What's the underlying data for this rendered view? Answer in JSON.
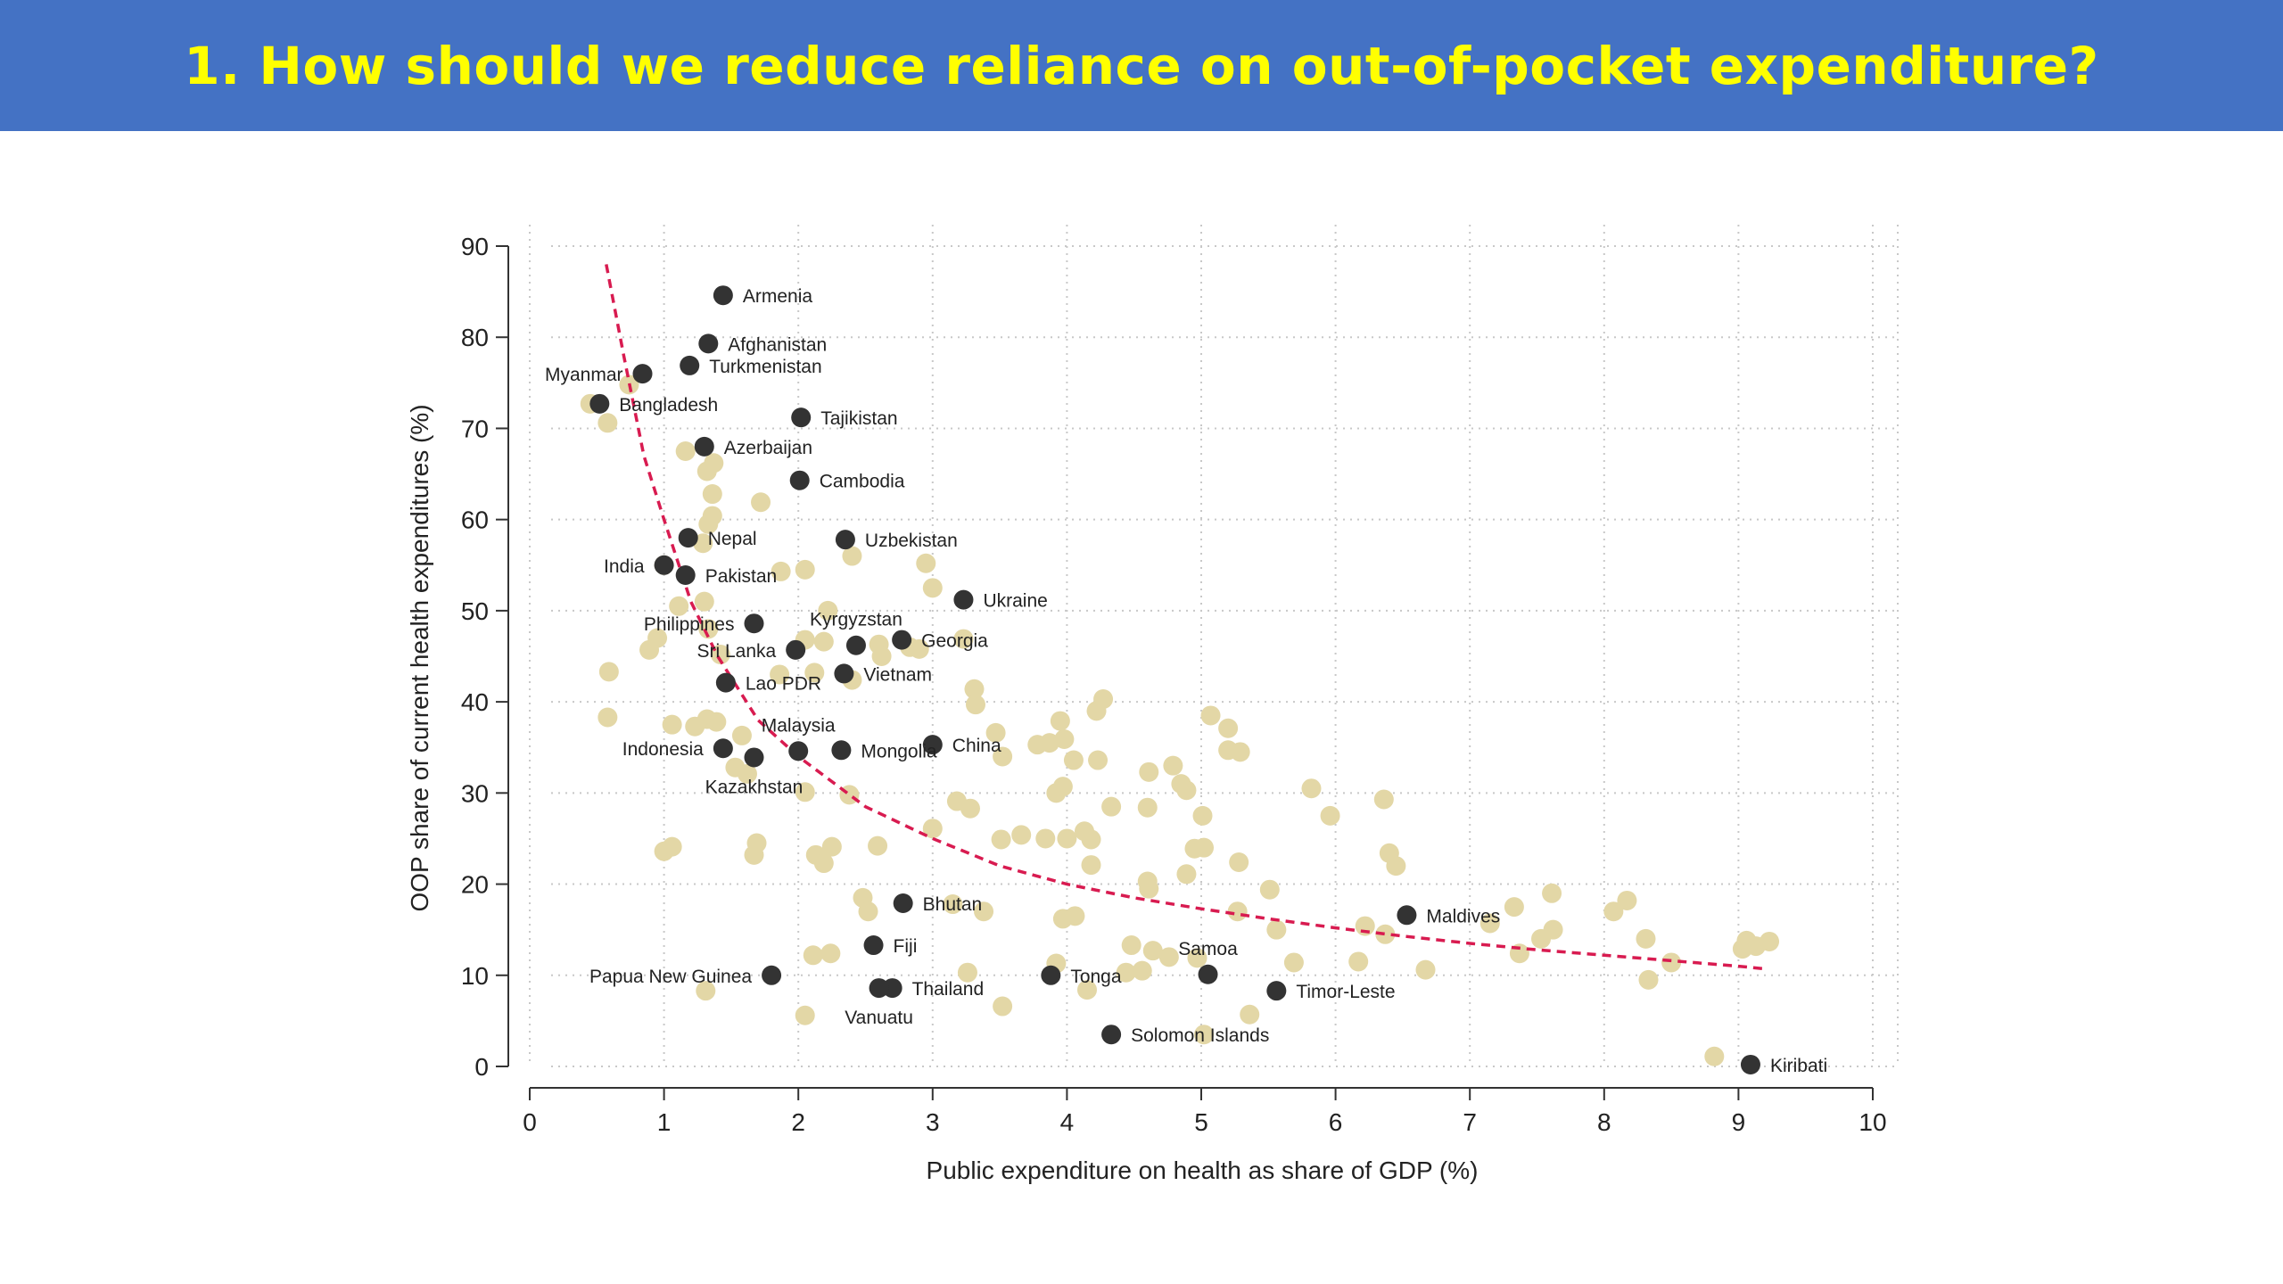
{
  "page": {
    "title": "1. How should we reduce reliance on out-of-pocket expenditure?"
  },
  "colors": {
    "title_bg": "#4472c4",
    "title_text": "#ffff00",
    "highlight_point": "#333333",
    "other_point": "#e3d7a6",
    "fit_curve": "#d81b50",
    "grid": "#c8c8c8"
  },
  "chart_data": {
    "type": "scatter",
    "title": "",
    "xlabel": "Public expenditure on health as share of GDP (%)",
    "ylabel": "OOP share of current health expenditures (%)",
    "xlim": [
      0,
      10
    ],
    "ylim": [
      0,
      90
    ],
    "xticks": [
      0,
      1,
      2,
      3,
      4,
      5,
      6,
      7,
      8,
      9,
      10
    ],
    "yticks": [
      0,
      10,
      20,
      30,
      40,
      50,
      60,
      70,
      80,
      90
    ],
    "grid": true,
    "fit_curve": {
      "style": "dashed",
      "x": [
        0.57,
        0.7,
        0.85,
        1.0,
        1.2,
        1.4,
        1.7,
        2.0,
        2.5,
        3.0,
        3.5,
        4.0,
        4.5,
        5.0,
        5.5,
        6.0,
        6.5,
        7.0,
        7.5,
        8.0,
        8.5,
        9.0,
        9.2
      ],
      "y": [
        88,
        78,
        67,
        60,
        51,
        45,
        38,
        34,
        28.5,
        25,
        22,
        20,
        18.5,
        17.3,
        16.2,
        15.2,
        14.3,
        13.5,
        12.8,
        12.2,
        11.6,
        11.0,
        10.7
      ]
    },
    "highlighted": [
      {
        "label": "Armenia",
        "x": 1.44,
        "y": 84.6,
        "label_pos": "right"
      },
      {
        "label": "Afghanistan",
        "x": 1.33,
        "y": 79.3,
        "label_pos": "right"
      },
      {
        "label": "Turkmenistan",
        "x": 1.19,
        "y": 76.9,
        "label_pos": "right"
      },
      {
        "label": "Myanmar",
        "x": 0.84,
        "y": 76.0,
        "label_pos": "left"
      },
      {
        "label": "Bangladesh",
        "x": 0.52,
        "y": 72.7,
        "label_pos": "right"
      },
      {
        "label": "Tajikistan",
        "x": 2.02,
        "y": 71.2,
        "label_pos": "right"
      },
      {
        "label": "Azerbaijan",
        "x": 1.3,
        "y": 68.0,
        "label_pos": "right"
      },
      {
        "label": "Cambodia",
        "x": 2.01,
        "y": 64.3,
        "label_pos": "right"
      },
      {
        "label": "Nepal",
        "x": 1.18,
        "y": 58.0,
        "label_pos": "right"
      },
      {
        "label": "Uzbekistan",
        "x": 2.35,
        "y": 57.8,
        "label_pos": "right"
      },
      {
        "label": "India",
        "x": 1.0,
        "y": 55.0,
        "label_pos": "left"
      },
      {
        "label": "Pakistan",
        "x": 1.16,
        "y": 53.9,
        "label_pos": "right"
      },
      {
        "label": "Ukraine",
        "x": 3.23,
        "y": 51.2,
        "label_pos": "right"
      },
      {
        "label": "Philippines",
        "x": 1.67,
        "y": 48.6,
        "label_pos": "left"
      },
      {
        "label": "Kyrgyzstan",
        "x": 2.43,
        "y": 46.2,
        "label_pos": "above"
      },
      {
        "label": "Georgia",
        "x": 2.77,
        "y": 46.8,
        "label_pos": "right"
      },
      {
        "label": "Sri Lanka",
        "x": 1.98,
        "y": 45.7,
        "label_pos": "left"
      },
      {
        "label": "Vietnam",
        "x": 2.34,
        "y": 43.1,
        "label_pos": "right"
      },
      {
        "label": "Lao PDR",
        "x": 1.46,
        "y": 42.1,
        "label_pos": "right"
      },
      {
        "label": "Malaysia",
        "x": 2.0,
        "y": 34.6,
        "label_pos": "above"
      },
      {
        "label": "Indonesia",
        "x": 1.44,
        "y": 34.9,
        "label_pos": "left"
      },
      {
        "label": "Mongolia",
        "x": 2.32,
        "y": 34.7,
        "label_pos": "right"
      },
      {
        "label": "China",
        "x": 3.0,
        "y": 35.3,
        "label_pos": "right"
      },
      {
        "label": "Kazakhstan",
        "x": 1.67,
        "y": 33.9,
        "label_pos": "below"
      },
      {
        "label": "Bhutan",
        "x": 2.78,
        "y": 17.9,
        "label_pos": "right"
      },
      {
        "label": "Maldives",
        "x": 6.53,
        "y": 16.6,
        "label_pos": "right"
      },
      {
        "label": "Fiji",
        "x": 2.56,
        "y": 13.3,
        "label_pos": "right"
      },
      {
        "label": "Samoa",
        "x": 5.05,
        "y": 10.1,
        "label_pos": "above"
      },
      {
        "label": "Papua New Guinea",
        "x": 1.8,
        "y": 10.0,
        "label_pos": "left"
      },
      {
        "label": "Tonga",
        "x": 3.88,
        "y": 10.0,
        "label_pos": "right"
      },
      {
        "label": "Thailand",
        "x": 2.7,
        "y": 8.6,
        "label_pos": "right"
      },
      {
        "label": "Vanuatu",
        "x": 2.6,
        "y": 8.6,
        "label_pos": "below"
      },
      {
        "label": "Timor-Leste",
        "x": 5.56,
        "y": 8.3,
        "label_pos": "right"
      },
      {
        "label": "Solomon Islands",
        "x": 4.33,
        "y": 3.5,
        "label_pos": "right"
      },
      {
        "label": "Kiribati",
        "x": 9.09,
        "y": 0.2,
        "label_pos": "right"
      }
    ],
    "others": [
      [
        0.45,
        72.7
      ],
      [
        0.58,
        70.6
      ],
      [
        0.74,
        74.8
      ],
      [
        1.16,
        67.5
      ],
      [
        1.32,
        65.3
      ],
      [
        1.37,
        66.2
      ],
      [
        1.36,
        62.8
      ],
      [
        1.33,
        59.5
      ],
      [
        1.36,
        60.4
      ],
      [
        1.72,
        61.9
      ],
      [
        1.29,
        57.4
      ],
      [
        1.0,
        55.0
      ],
      [
        1.87,
        54.3
      ],
      [
        2.05,
        54.5
      ],
      [
        2.4,
        56.0
      ],
      [
        2.95,
        55.2
      ],
      [
        3.0,
        52.5
      ],
      [
        1.11,
        50.5
      ],
      [
        1.3,
        51.0
      ],
      [
        2.22,
        50.0
      ],
      [
        1.33,
        48.0
      ],
      [
        0.95,
        47.0
      ],
      [
        0.89,
        45.7
      ],
      [
        1.42,
        45.2
      ],
      [
        2.05,
        46.8
      ],
      [
        2.19,
        46.6
      ],
      [
        2.6,
        46.3
      ],
      [
        2.83,
        46.0
      ],
      [
        2.62,
        45.0
      ],
      [
        2.9,
        45.8
      ],
      [
        3.23,
        46.9
      ],
      [
        0.59,
        43.3
      ],
      [
        2.12,
        43.2
      ],
      [
        1.86,
        43.0
      ],
      [
        2.4,
        42.4
      ],
      [
        3.31,
        41.4
      ],
      [
        3.32,
        39.7
      ],
      [
        4.27,
        40.3
      ],
      [
        4.22,
        39.0
      ],
      [
        0.58,
        38.3
      ],
      [
        1.06,
        37.5
      ],
      [
        1.32,
        38.1
      ],
      [
        1.23,
        37.3
      ],
      [
        1.39,
        37.8
      ],
      [
        1.58,
        36.3
      ],
      [
        3.47,
        36.6
      ],
      [
        3.95,
        37.9
      ],
      [
        5.07,
        38.5
      ],
      [
        5.2,
        37.1
      ],
      [
        1.53,
        32.8
      ],
      [
        1.62,
        32.1
      ],
      [
        3.52,
        34.0
      ],
      [
        3.78,
        35.3
      ],
      [
        3.87,
        35.5
      ],
      [
        3.98,
        35.9
      ],
      [
        4.05,
        33.6
      ],
      [
        4.23,
        33.6
      ],
      [
        4.61,
        32.3
      ],
      [
        4.79,
        33.0
      ],
      [
        5.2,
        34.7
      ],
      [
        5.29,
        34.5
      ],
      [
        2.05,
        30.1
      ],
      [
        2.38,
        29.8
      ],
      [
        3.92,
        30.0
      ],
      [
        3.97,
        30.7
      ],
      [
        4.85,
        31.0
      ],
      [
        4.89,
        30.3
      ],
      [
        5.82,
        30.5
      ],
      [
        6.36,
        29.3
      ],
      [
        3.18,
        29.1
      ],
      [
        3.28,
        28.3
      ],
      [
        4.33,
        28.5
      ],
      [
        4.6,
        28.4
      ],
      [
        5.01,
        27.5
      ],
      [
        5.96,
        27.5
      ],
      [
        3.0,
        26.1
      ],
      [
        3.51,
        24.9
      ],
      [
        3.66,
        25.4
      ],
      [
        3.84,
        25.0
      ],
      [
        4.0,
        25.0
      ],
      [
        4.13,
        25.8
      ],
      [
        4.18,
        24.9
      ],
      [
        4.95,
        23.9
      ],
      [
        5.02,
        24.0
      ],
      [
        6.4,
        23.4
      ],
      [
        6.45,
        22.0
      ],
      [
        1.0,
        23.6
      ],
      [
        1.06,
        24.1
      ],
      [
        1.67,
        23.2
      ],
      [
        1.69,
        24.5
      ],
      [
        2.13,
        23.2
      ],
      [
        2.19,
        22.3
      ],
      [
        2.25,
        24.1
      ],
      [
        2.59,
        24.2
      ],
      [
        4.18,
        22.1
      ],
      [
        4.6,
        20.3
      ],
      [
        4.61,
        19.5
      ],
      [
        4.89,
        21.1
      ],
      [
        5.28,
        22.4
      ],
      [
        5.51,
        19.4
      ],
      [
        7.61,
        19.0
      ],
      [
        8.17,
        18.2
      ],
      [
        2.48,
        18.5
      ],
      [
        2.52,
        17.0
      ],
      [
        3.15,
        17.8
      ],
      [
        3.38,
        17.0
      ],
      [
        3.97,
        16.2
      ],
      [
        4.06,
        16.5
      ],
      [
        5.27,
        17.0
      ],
      [
        5.56,
        15.0
      ],
      [
        6.22,
        15.4
      ],
      [
        6.37,
        14.5
      ],
      [
        7.33,
        17.5
      ],
      [
        7.62,
        15.0
      ],
      [
        8.07,
        17.0
      ],
      [
        8.31,
        14.0
      ],
      [
        7.15,
        15.7
      ],
      [
        7.53,
        14.0
      ],
      [
        2.11,
        12.2
      ],
      [
        2.24,
        12.4
      ],
      [
        4.48,
        13.3
      ],
      [
        4.64,
        12.7
      ],
      [
        4.76,
        12.0
      ],
      [
        4.97,
        11.9
      ],
      [
        5.69,
        11.4
      ],
      [
        6.17,
        11.5
      ],
      [
        7.37,
        12.4
      ],
      [
        8.5,
        11.4
      ],
      [
        9.03,
        12.9
      ],
      [
        9.06,
        13.8
      ],
      [
        9.13,
        13.2
      ],
      [
        9.23,
        13.7
      ],
      [
        3.26,
        10.3
      ],
      [
        3.92,
        11.3
      ],
      [
        4.44,
        10.3
      ],
      [
        4.56,
        10.5
      ],
      [
        6.67,
        10.6
      ],
      [
        1.31,
        8.3
      ],
      [
        4.15,
        8.4
      ],
      [
        8.33,
        9.5
      ],
      [
        2.05,
        5.6
      ],
      [
        3.52,
        6.6
      ],
      [
        5.36,
        5.7
      ],
      [
        5.02,
        3.5
      ],
      [
        8.82,
        1.1
      ]
    ]
  }
}
